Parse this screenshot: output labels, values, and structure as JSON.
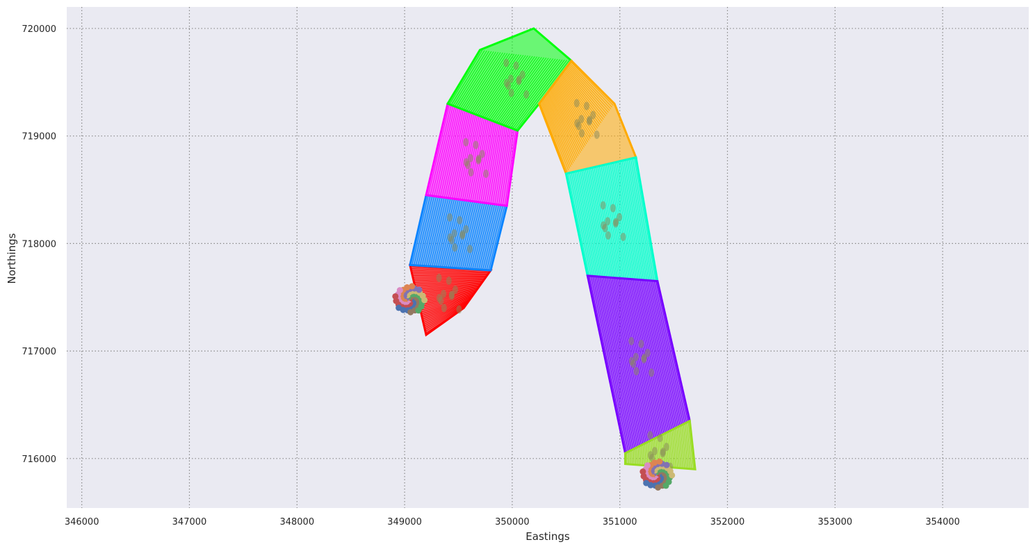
{
  "chart_data": {
    "type": "scatter",
    "title": "",
    "xlabel": "Eastings",
    "ylabel": "Northings",
    "xlim": [
      345860,
      354800
    ],
    "ylim": [
      715540,
      720200
    ],
    "xticks": [
      346000,
      347000,
      348000,
      349000,
      350000,
      351000,
      352000,
      353000,
      354000
    ],
    "yticks": [
      716000,
      717000,
      718000,
      719000,
      720000
    ],
    "grid": true,
    "grid_style": "dotted",
    "background": "#eaeaf2",
    "legend": "none",
    "segments": [
      {
        "color": "#ff0000",
        "path": [
          [
            349050,
            717800
          ],
          [
            349200,
            717150
          ],
          [
            349550,
            717400
          ],
          [
            349800,
            717750
          ]
        ]
      },
      {
        "color": "#0a84ff",
        "path": [
          [
            349050,
            717800
          ],
          [
            349800,
            717750
          ],
          [
            349950,
            718350
          ],
          [
            349200,
            718450
          ]
        ]
      },
      {
        "color": "#ff00ff",
        "path": [
          [
            349200,
            718450
          ],
          [
            349950,
            718350
          ],
          [
            350050,
            719050
          ],
          [
            349400,
            719300
          ]
        ]
      },
      {
        "color": "#00ff0c",
        "path": [
          [
            349400,
            719300
          ],
          [
            350050,
            719050
          ],
          [
            350250,
            719300
          ],
          [
            350550,
            719700
          ],
          [
            350200,
            720000
          ],
          [
            349700,
            719800
          ]
        ]
      },
      {
        "color": "#ffaa00",
        "path": [
          [
            350250,
            719300
          ],
          [
            350550,
            719700
          ],
          [
            350950,
            719300
          ],
          [
            351150,
            718800
          ],
          [
            350500,
            718650
          ]
        ]
      },
      {
        "color": "#00ffcc",
        "path": [
          [
            350500,
            718650
          ],
          [
            351150,
            718800
          ],
          [
            351350,
            717650
          ],
          [
            350700,
            717700
          ]
        ]
      },
      {
        "color": "#7700ff",
        "path": [
          [
            350700,
            717700
          ],
          [
            351350,
            717650
          ],
          [
            351650,
            716350
          ],
          [
            351050,
            716050
          ]
        ]
      },
      {
        "color": "#99dd22",
        "path": [
          [
            351050,
            716050
          ],
          [
            351650,
            716350
          ],
          [
            351700,
            715900
          ],
          [
            351050,
            715950
          ]
        ]
      }
    ],
    "clusters": [
      {
        "x": 349050,
        "y": 717480,
        "r": 140
      },
      {
        "x": 351350,
        "y": 715850,
        "r": 140
      }
    ],
    "cluster_colors": [
      "#4c72b0",
      "#dd8452",
      "#55a868",
      "#c44e52",
      "#8172b3",
      "#937860",
      "#da8bc3",
      "#ccb974"
    ]
  }
}
